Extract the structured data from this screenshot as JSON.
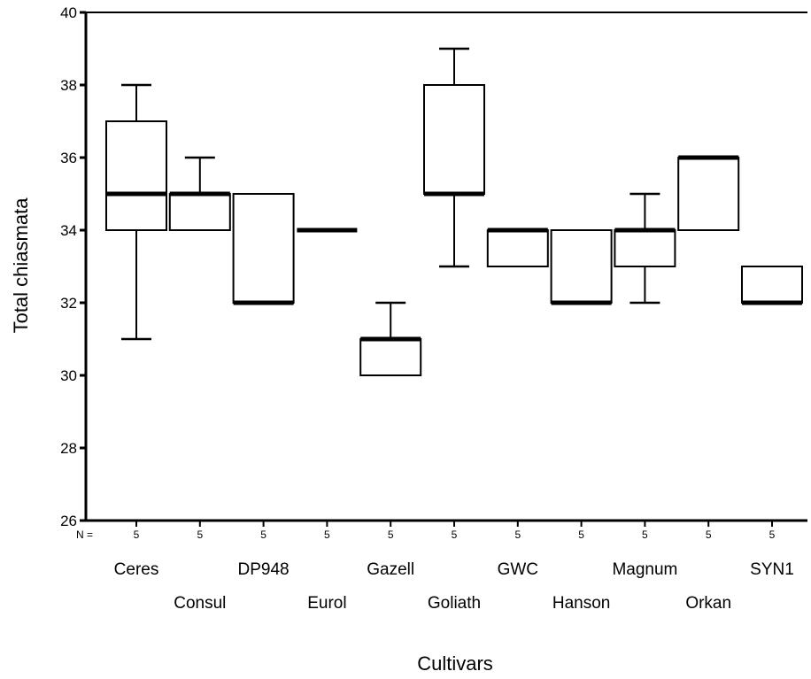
{
  "chart_data": {
    "type": "boxplot",
    "title": "",
    "xlabel": "Cultivars",
    "ylabel": "Total chiasmata",
    "ylim": [
      26,
      40
    ],
    "yticks": [
      26,
      28,
      30,
      32,
      34,
      36,
      38,
      40
    ],
    "n_prefix": "N =",
    "categories": [
      "Ceres",
      "Consul",
      "DP948",
      "Eurol",
      "Gazell",
      "Goliath",
      "GWC",
      "Hanson",
      "Magnum",
      "Orkan",
      "SYN1"
    ],
    "n": [
      "5",
      "5",
      "5",
      "5",
      "5",
      "5",
      "5",
      "5",
      "5",
      "5",
      "5"
    ],
    "boxes": [
      {
        "whisker_low": 31,
        "q1": 34,
        "median": 35,
        "q3": 37,
        "whisker_high": 38
      },
      {
        "whisker_low": 34,
        "q1": 34,
        "median": 35,
        "q3": 35,
        "whisker_high": 36
      },
      {
        "whisker_low": 32,
        "q1": 32,
        "median": 32,
        "q3": 35,
        "whisker_high": 35
      },
      {
        "whisker_low": 34,
        "q1": 34,
        "median": 34,
        "q3": 34,
        "whisker_high": 34
      },
      {
        "whisker_low": 30,
        "q1": 30,
        "median": 31,
        "q3": 31,
        "whisker_high": 32
      },
      {
        "whisker_low": 33,
        "q1": 35,
        "median": 35,
        "q3": 38,
        "whisker_high": 39
      },
      {
        "whisker_low": 33,
        "q1": 33,
        "median": 34,
        "q3": 34,
        "whisker_high": 34
      },
      {
        "whisker_low": 32,
        "q1": 32,
        "median": 32,
        "q3": 34,
        "whisker_high": 34
      },
      {
        "whisker_low": 32,
        "q1": 33,
        "median": 34,
        "q3": 34,
        "whisker_high": 35
      },
      {
        "whisker_low": 34,
        "q1": 34,
        "median": 36,
        "q3": 36,
        "whisker_high": 36
      },
      {
        "whisker_low": 32,
        "q1": 32,
        "median": 32,
        "q3": 33,
        "whisker_high": 33
      }
    ],
    "grid": false,
    "legend": "none"
  }
}
